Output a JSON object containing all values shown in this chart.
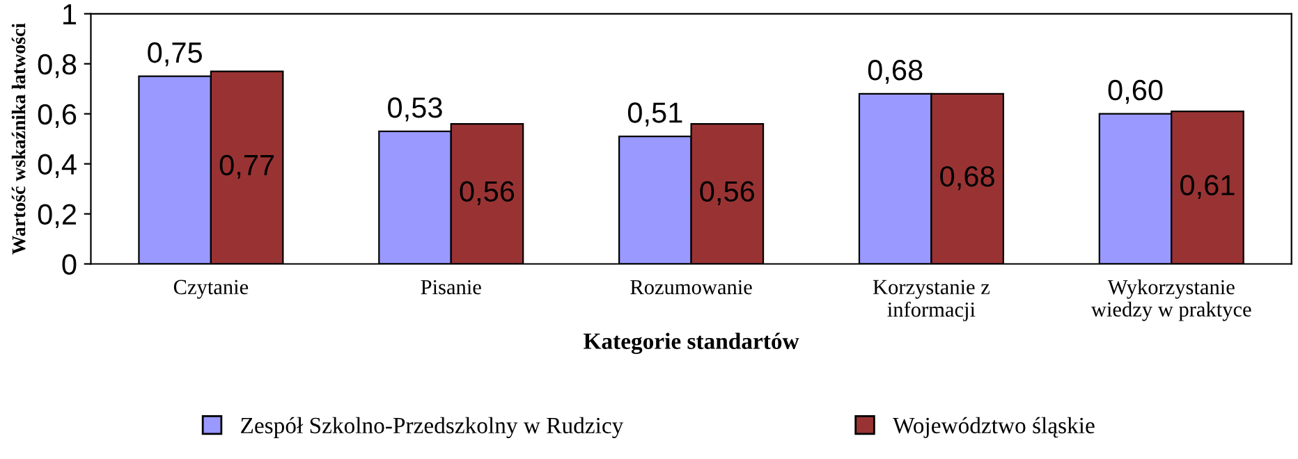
{
  "chart_data": {
    "type": "bar",
    "xlabel": "Kategorie standartów",
    "ylabel": "Wartość wskaźnika łatwości",
    "categories": [
      "Czytanie",
      "Pisanie",
      "Rozumowanie",
      "Korzystanie z\ninformacji",
      "Wykorzystanie\nwiedzy w praktyce"
    ],
    "series": [
      {
        "name": "Zespół Szkolno-Przedszkolny w Rudzicy",
        "color": "#9999ff",
        "values": [
          0.75,
          0.53,
          0.51,
          0.68,
          0.6
        ],
        "value_labels": [
          "0,75",
          "0,53",
          "0,51",
          "0,68",
          "0,60"
        ]
      },
      {
        "name": "Województwo śląskie",
        "color": "#993333",
        "values": [
          0.77,
          0.56,
          0.56,
          0.68,
          0.61
        ],
        "value_labels": [
          "0,77",
          "0,56",
          "0,56",
          "0,68",
          "0,61"
        ]
      }
    ],
    "ylim": [
      0,
      1
    ],
    "yticks": [
      0,
      {
        "value": 0.2,
        "label": "0,2"
      },
      {
        "value": 0.4,
        "label": "0,4"
      },
      {
        "value": 0.6,
        "label": "0,6"
      },
      {
        "value": 0.8,
        "label": "0,8"
      },
      1
    ],
    "grid": false,
    "legend": "bottom"
  }
}
